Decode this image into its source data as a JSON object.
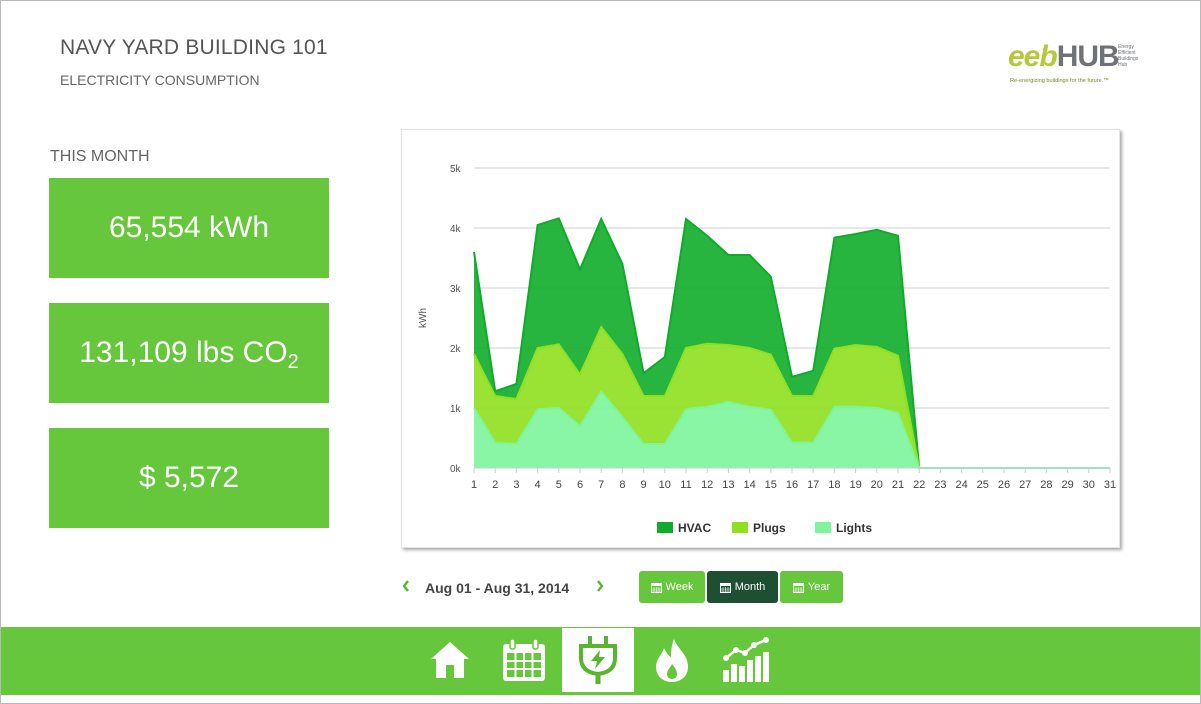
{
  "header": {
    "title": "NAVY YARD BUILDING 101",
    "subtitle": "ELECTRICITY CONSUMPTION"
  },
  "logo": {
    "name_a": "eeb",
    "name_b": "HUB",
    "small_text": "Energy Efficient Buildings Hub",
    "tagline": "Re-energizing buildings for the future.™"
  },
  "summary": {
    "label": "THIS MONTH",
    "energy": "65,554 kWh",
    "co2_prefix": "131,109 lbs CO",
    "co2_sub": "2",
    "cost": "$ 5,572"
  },
  "date_nav": {
    "range": "Aug 01 - Aug 31, 2014",
    "prev_icon": "chevron-left-icon",
    "next_icon": "chevron-right-icon"
  },
  "period_buttons": [
    {
      "label": "Week",
      "icon": "calendar-icon",
      "active": false
    },
    {
      "label": "Month",
      "icon": "calendar-icon",
      "active": true
    },
    {
      "label": "Year",
      "icon": "calendar-icon",
      "active": false
    }
  ],
  "bottom_nav": [
    {
      "icon": "home-icon",
      "active": false
    },
    {
      "icon": "calendar-icon",
      "active": false
    },
    {
      "icon": "plug-icon",
      "active": true
    },
    {
      "icon": "flame-icon",
      "active": false
    },
    {
      "icon": "bar-chart-icon",
      "active": false
    }
  ],
  "colors": {
    "brand_green": "#66c63c",
    "active_dark": "#1e4f32",
    "hvac": "#0fac2a",
    "plugs": "#8fe01e",
    "lights": "#7cf59b"
  },
  "chart_data": {
    "type": "area",
    "stacked": true,
    "ylabel": "kWh",
    "ylim": [
      0,
      5000
    ],
    "yticks": [
      "0k",
      "1k",
      "2k",
      "3k",
      "4k",
      "5k"
    ],
    "x": [
      1,
      2,
      3,
      4,
      5,
      6,
      7,
      8,
      9,
      10,
      11,
      12,
      13,
      14,
      15,
      16,
      17,
      18,
      19,
      20,
      21,
      22,
      23,
      24,
      25,
      26,
      27,
      28,
      29,
      30,
      31
    ],
    "legend_position": "bottom",
    "grid": true,
    "series": [
      {
        "name": "HVAC",
        "color": "#0fac2a",
        "values": [
          1700,
          80,
          250,
          2050,
          2100,
          1750,
          1800,
          1500,
          380,
          650,
          2150,
          1800,
          1500,
          1550,
          1300,
          320,
          420,
          1850,
          1850,
          1950,
          2000,
          0,
          0,
          0,
          0,
          0,
          0,
          0,
          0,
          0,
          0
        ]
      },
      {
        "name": "Plugs",
        "color": "#8fe01e",
        "values": [
          900,
          780,
          750,
          1020,
          1060,
          860,
          1080,
          1050,
          800,
          800,
          1020,
          1050,
          950,
          980,
          920,
          780,
          780,
          970,
          1030,
          1020,
          950,
          0,
          0,
          0,
          0,
          0,
          0,
          0,
          0,
          0,
          0
        ]
      },
      {
        "name": "Lights",
        "color": "#7cf59b",
        "values": [
          1000,
          420,
          400,
          980,
          1000,
          700,
          1270,
          850,
          400,
          400,
          980,
          1020,
          1100,
          1020,
          970,
          420,
          420,
          1020,
          1020,
          1000,
          920,
          0,
          0,
          0,
          0,
          0,
          0,
          0,
          0,
          0,
          0
        ]
      }
    ]
  }
}
